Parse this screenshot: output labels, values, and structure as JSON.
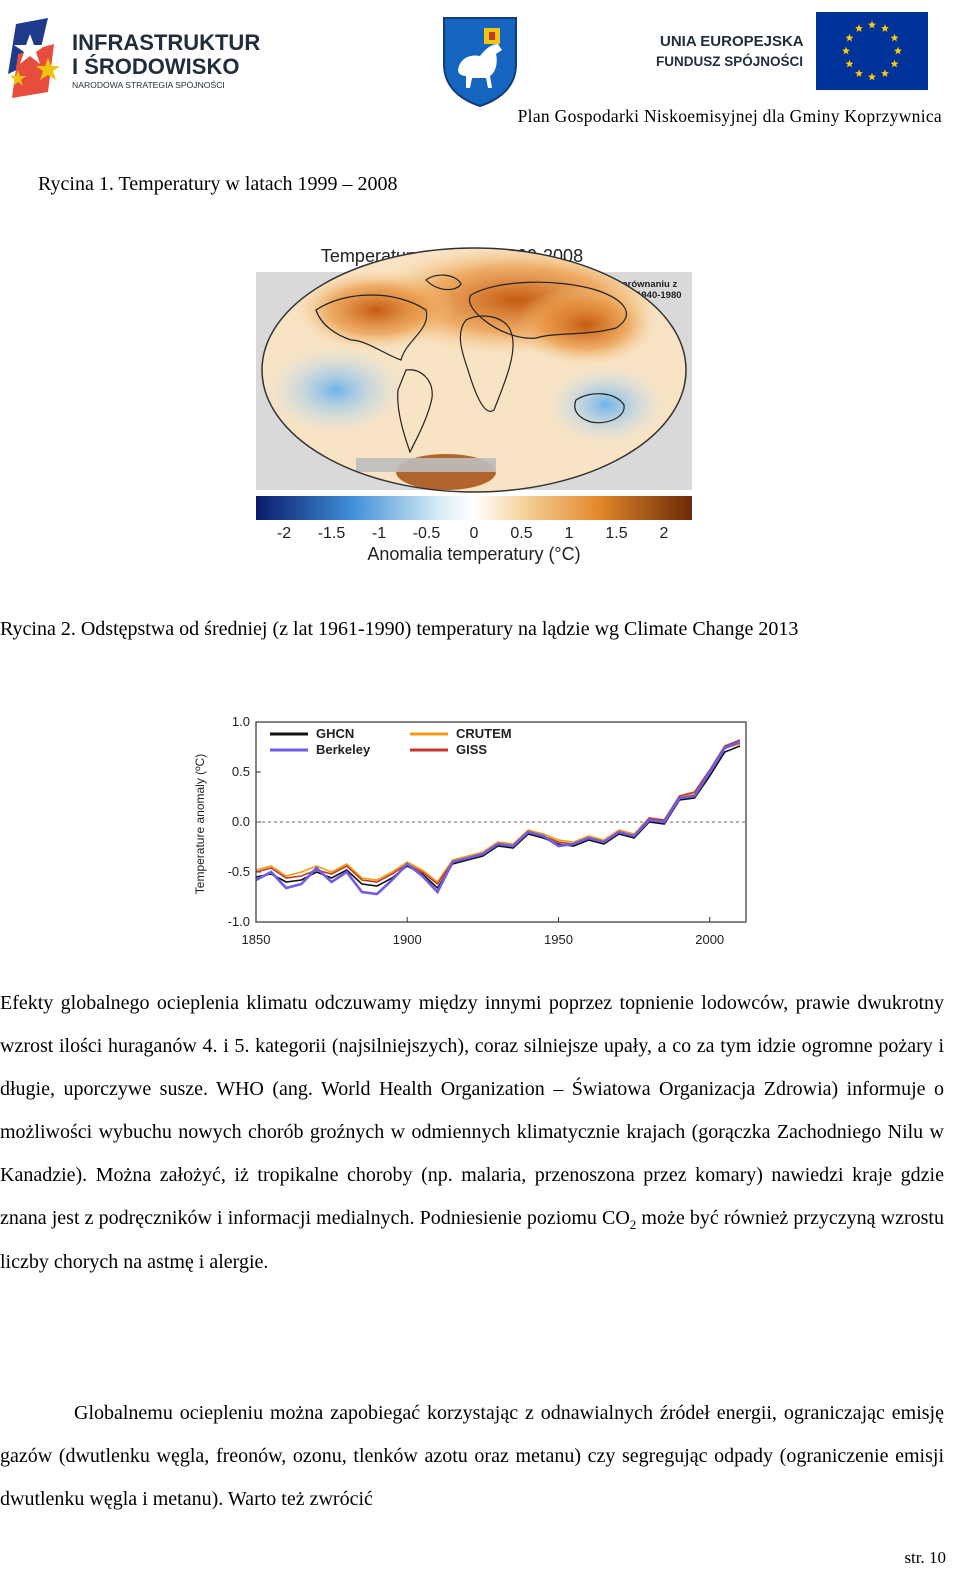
{
  "header": {
    "left_logo": {
      "line1": "INFRASTRUKTURA",
      "line2": "I ŚRODOWISKO",
      "line3": "NARODOWA STRATEGIA SPÓJNOŚCI",
      "icon": "stars-logo-icon"
    },
    "center_logo": {
      "icon": "coat-of-arms-icon"
    },
    "right_logo": {
      "line1": "UNIA EUROPEJSKA",
      "line2": "FUNDUSZ SPÓJNOŚCI",
      "icon": "eu-flag-icon",
      "flag_color": "#003399",
      "star_color": "#ffcc00"
    },
    "title": "Plan Gospodarki Niskoemisyjnej dla Gminy Koprzywnica"
  },
  "figure1": {
    "caption": "Rycina 1. Temperatury w latach 1999 – 2008",
    "title": "Temperatury w latach 1999-2008",
    "note_line1": "w porównaniu z",
    "note_line2": "latami 1940-1980",
    "colorbar_ticks": [
      "-2",
      "-1.5",
      "-1",
      "-0.5",
      "0",
      "0.5",
      "1",
      "1.5",
      "2"
    ],
    "colorbar_label": "Anomalia temperatury (°C)"
  },
  "figure2": {
    "caption": "Rycina 2. Odstępstwa od średniej (z lat 1961-1990) temperatury na lądzie wg Climate Change 2013"
  },
  "chart_data": {
    "type": "line",
    "title": "",
    "xlabel": "",
    "ylabel": "Temperature anomaly (ºC)",
    "xlim": [
      1850,
      2012
    ],
    "ylim": [
      -1.0,
      1.0
    ],
    "xticks": [
      "1850",
      "1900",
      "1950",
      "2000"
    ],
    "yticks": [
      "1.0",
      "0.5",
      "0.0",
      "-0.5",
      "-1.0"
    ],
    "zero_line": true,
    "legend_position": "top-left",
    "x": [
      1850,
      1855,
      1860,
      1865,
      1870,
      1875,
      1880,
      1885,
      1890,
      1895,
      1900,
      1905,
      1910,
      1915,
      1920,
      1925,
      1930,
      1935,
      1940,
      1945,
      1950,
      1955,
      1960,
      1965,
      1970,
      1975,
      1980,
      1985,
      1990,
      1995,
      2000,
      2005,
      2010
    ],
    "series": [
      {
        "name": "GHCN",
        "color": "#111111",
        "values": [
          -0.55,
          -0.52,
          -0.6,
          -0.58,
          -0.5,
          -0.56,
          -0.48,
          -0.62,
          -0.64,
          -0.56,
          -0.44,
          -0.52,
          -0.66,
          -0.42,
          -0.38,
          -0.34,
          -0.24,
          -0.26,
          -0.12,
          -0.16,
          -0.22,
          -0.24,
          -0.18,
          -0.22,
          -0.12,
          -0.16,
          0.0,
          -0.02,
          0.22,
          0.24,
          0.46,
          0.7,
          0.76
        ]
      },
      {
        "name": "CRUTEM",
        "color": "#f39c12",
        "values": [
          -0.48,
          -0.44,
          -0.54,
          -0.5,
          -0.44,
          -0.5,
          -0.42,
          -0.56,
          -0.58,
          -0.5,
          -0.4,
          -0.48,
          -0.6,
          -0.38,
          -0.34,
          -0.3,
          -0.2,
          -0.22,
          -0.08,
          -0.12,
          -0.18,
          -0.2,
          -0.14,
          -0.18,
          -0.08,
          -0.12,
          0.04,
          0.02,
          0.26,
          0.28,
          0.5,
          0.74,
          0.78
        ]
      },
      {
        "name": "Berkeley",
        "color": "#6c5ce7",
        "values": [
          -0.58,
          -0.5,
          -0.66,
          -0.62,
          -0.46,
          -0.6,
          -0.5,
          -0.7,
          -0.72,
          -0.58,
          -0.42,
          -0.54,
          -0.7,
          -0.4,
          -0.36,
          -0.32,
          -0.22,
          -0.24,
          -0.1,
          -0.14,
          -0.24,
          -0.22,
          -0.16,
          -0.2,
          -0.1,
          -0.14,
          0.02,
          0.0,
          0.24,
          0.26,
          0.5,
          0.74,
          0.8
        ]
      },
      {
        "name": "GISS",
        "color": "#c0392b",
        "values": [
          -0.5,
          -0.46,
          -0.56,
          -0.54,
          -0.48,
          -0.52,
          -0.44,
          -0.58,
          -0.6,
          -0.52,
          -0.42,
          -0.5,
          -0.62,
          -0.4,
          -0.36,
          -0.32,
          -0.22,
          -0.24,
          -0.1,
          -0.14,
          -0.2,
          -0.22,
          -0.16,
          -0.2,
          -0.1,
          -0.14,
          0.04,
          0.02,
          0.26,
          0.3,
          0.52,
          0.76,
          0.82
        ]
      }
    ]
  },
  "body": {
    "p1_a": "Efekty globalnego ocieplenia klimatu odczuwamy między innymi poprzez topnienie lodowców, prawie dwukrotny wzrost ilości huraganów 4. i 5. kategorii (najsilniejszych), coraz silniejsze upały, a co za tym idzie ogromne pożary i długie, uporczywe susze. WHO (ang. World Health Organization – Światowa Organizacja Zdrowia) informuje o możliwości wybuchu nowych chorób groźnych w odmiennych klimatycznie krajach (gorączka Zachodniego Nilu w Kanadzie). Można założyć, iż tropikalne choroby (np. malaria, przenoszona przez komary) nawiedzi kraje gdzie znana jest z podręczników i informacji medialnych. Podniesienie poziomu CO",
    "p1_sub": "2",
    "p1_b": " może być również przyczyną wzrostu liczby chorych na astmę i alergie.",
    "p2": "Globalnemu ociepleniu można zapobiegać korzystając z odnawialnych źródeł energii, ograniczając emisję gazów (dwutlenku węgla, freonów, ozonu, tlenków azotu oraz metanu) czy segregując  odpady (ograniczenie emisji dwutlenku węgla i metanu). Warto też zwrócić"
  },
  "page_number": "str. 10"
}
